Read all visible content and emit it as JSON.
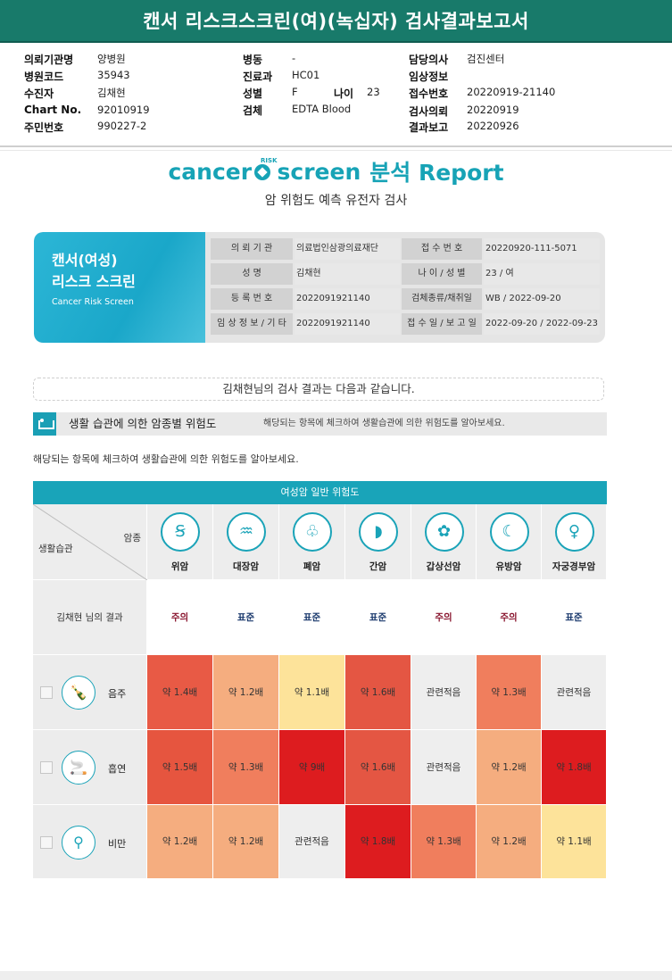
{
  "title": "캔서 리스크스크린(여)(녹십자) 검사결과보고서",
  "header": [
    {
      "label": "의뢰기관명",
      "value": "양병원"
    },
    {
      "label": "병원코드",
      "value": "35943"
    },
    {
      "label": "수진자",
      "value": "김채현"
    },
    {
      "label": "Chart No.",
      "value": "92010919"
    },
    {
      "label": "주민번호",
      "value": "990227-2"
    },
    {
      "label": "병동",
      "value": "-"
    },
    {
      "label": "진료과",
      "value": "HC01"
    },
    {
      "label": "성별",
      "value": "F"
    },
    {
      "label": "나이",
      "value": "23"
    },
    {
      "label": "검체",
      "value": "EDTA Blood"
    },
    {
      "label": "담당의사",
      "value": "검진센터"
    },
    {
      "label": "임상정보",
      "value": ""
    },
    {
      "label": "접수번호",
      "value": "20220919-21140"
    },
    {
      "label": "검사의뢰",
      "value": "20220919"
    },
    {
      "label": "결과보고",
      "value": "20220926"
    }
  ],
  "logo": {
    "cancer": "cancer",
    "risk": "RISK",
    "screen": "screen",
    "report": "분석 Report"
  },
  "subtitle": "암 위험도 예측 유전자 검사",
  "card": {
    "title1": "캔서(여성)",
    "title2": "리스크 스크린",
    "title_en": "Cancer Risk Screen",
    "rows": [
      {
        "l1": "의 뢰 기 관",
        "v1": "의료법인삼광의료재단",
        "l2": "접 수 번 호",
        "v2": "20220920-111-5071"
      },
      {
        "l1": "성          명",
        "v1": "김채현",
        "l2": "나 이 / 성 별",
        "v2": "23 / 여"
      },
      {
        "l1": "등 록 번 호",
        "v1": "2022091921140",
        "l2": "검체종류/채취일",
        "v2": "WB / 2022-09-20"
      },
      {
        "l1": "임 상 정 보 / 기 타",
        "v1": "2022091921140",
        "l2": "접 수 일 / 보 고 일",
        "v2": "2022-09-20 / 2022-09-23"
      }
    ]
  },
  "intro": "김채현님의 검사 결과는 다음과 같습니다.",
  "section": {
    "title": "생활 습관에 의한 암종별 위험도",
    "desc": "해당되는 항목에 체크하여 생활습관에 의한 위험도를 알아보세요."
  },
  "description": "해당되는 항목에 체크하여 생활습관에 의한 위험도를 알아보세요.",
  "table": {
    "header": "여성암 일반 위험도",
    "corner_top": "암종",
    "corner_bottom": "생활습관",
    "result_label": "김채현 님의 결과",
    "cancers": [
      {
        "name": "위암",
        "icon": "stomach-icon",
        "glyph": "Ꞩ",
        "result": "주의",
        "level": "warn"
      },
      {
        "name": "대장암",
        "icon": "colon-icon",
        "glyph": "♒",
        "result": "표준",
        "level": "std"
      },
      {
        "name": "폐암",
        "icon": "lung-icon",
        "glyph": "♧",
        "result": "표준",
        "level": "std"
      },
      {
        "name": "간암",
        "icon": "liver-icon",
        "glyph": "◗",
        "result": "표준",
        "level": "std"
      },
      {
        "name": "갑상선암",
        "icon": "thyroid-icon",
        "glyph": "✿",
        "result": "주의",
        "level": "warn"
      },
      {
        "name": "유방암",
        "icon": "breast-icon",
        "glyph": "☾",
        "result": "주의",
        "level": "warn"
      },
      {
        "name": "자궁경부암",
        "icon": "uterus-icon",
        "glyph": "♀",
        "result": "표준",
        "level": "std"
      }
    ],
    "habits": [
      {
        "name": "음주",
        "icon": "alcohol-icon",
        "glyph": "🍾",
        "cells": [
          {
            "text": "약 1.4배",
            "color": "#e85a45"
          },
          {
            "text": "약 1.2배",
            "color": "#f5ad7f"
          },
          {
            "text": "약 1.1배",
            "color": "#fde39a"
          },
          {
            "text": "약 1.6배",
            "color": "#e45643"
          },
          {
            "text": "관련적음",
            "color": "#eeeeee"
          },
          {
            "text": "약 1.3배",
            "color": "#f07e5d"
          },
          {
            "text": "관련적음",
            "color": "#eeeeee"
          }
        ]
      },
      {
        "name": "흡연",
        "icon": "smoking-icon",
        "glyph": "🚬",
        "cells": [
          {
            "text": "약 1.5배",
            "color": "#e6553f"
          },
          {
            "text": "약 1.3배",
            "color": "#f07e5d"
          },
          {
            "text": "약 9배",
            "color": "#dd1c1f"
          },
          {
            "text": "약 1.6배",
            "color": "#e45643"
          },
          {
            "text": "관련적음",
            "color": "#eeeeee"
          },
          {
            "text": "약 1.2배",
            "color": "#f5ad7f"
          },
          {
            "text": "약 1.8배",
            "color": "#dd1c1f"
          }
        ]
      },
      {
        "name": "비만",
        "icon": "obesity-icon",
        "glyph": "⚲",
        "cells": [
          {
            "text": "약 1.2배",
            "color": "#f5ad7f"
          },
          {
            "text": "약 1.2배",
            "color": "#f5ad7f"
          },
          {
            "text": "관련적음",
            "color": "#eeeeee"
          },
          {
            "text": "약 1.8배",
            "color": "#dd1c1f"
          },
          {
            "text": "약 1.3배",
            "color": "#f07e5d"
          },
          {
            "text": "약 1.2배",
            "color": "#f5ad7f"
          },
          {
            "text": "약 1.1배",
            "color": "#fde39a"
          }
        ]
      }
    ]
  }
}
